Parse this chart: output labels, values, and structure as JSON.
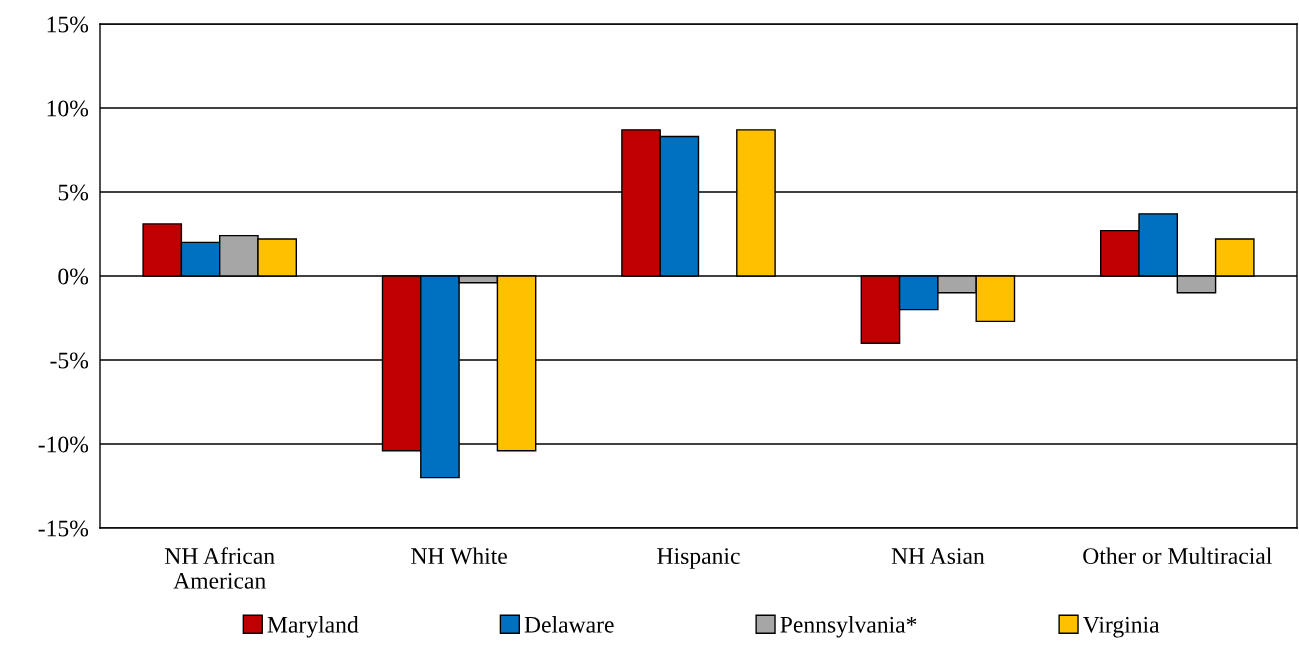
{
  "chart_data": {
    "type": "bar",
    "categories": [
      "NH African\nAmerican",
      "NH White",
      "Hispanic",
      "NH Asian",
      "Other or Multiracial"
    ],
    "series": [
      {
        "name": "Maryland",
        "color": "#c00000",
        "values": [
          3.1,
          -10.4,
          8.7,
          -4.0,
          2.7
        ]
      },
      {
        "name": "Delaware",
        "color": "#0070c0",
        "values": [
          2.0,
          -12.0,
          8.3,
          -2.0,
          3.7
        ]
      },
      {
        "name": "Pennsylvania*",
        "color": "#a6a6a6",
        "values": [
          2.4,
          -0.4,
          null,
          -1.0,
          -1.0
        ]
      },
      {
        "name": "Virginia",
        "color": "#ffc000",
        "values": [
          2.2,
          -10.4,
          8.7,
          -2.7,
          2.2
        ]
      }
    ],
    "ylim": [
      -15,
      15
    ],
    "yticks": [
      {
        "value": -15,
        "label": "-15%"
      },
      {
        "value": -10,
        "label": "-10%"
      },
      {
        "value": -5,
        "label": "-5%"
      },
      {
        "value": 0,
        "label": "0%"
      },
      {
        "value": 5,
        "label": "5%"
      },
      {
        "value": 10,
        "label": "10%"
      },
      {
        "value": 15,
        "label": "15%"
      }
    ],
    "grid": "y",
    "legend": "bottom"
  }
}
